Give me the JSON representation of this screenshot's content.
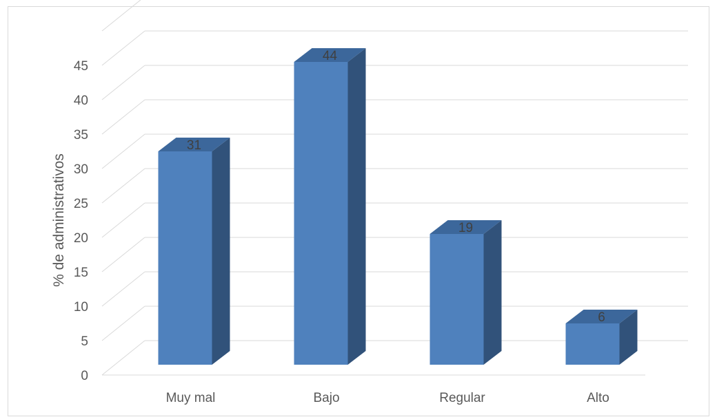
{
  "chart_data": {
    "type": "bar",
    "style": "3d-column",
    "title": "",
    "xlabel": "",
    "ylabel": "% de administrativos",
    "categories": [
      "Muy mal",
      "Bajo",
      "Regular",
      "Alto"
    ],
    "values": [
      31,
      44,
      19,
      6
    ],
    "ylim": [
      0,
      45
    ],
    "y_ticks": [
      0,
      5,
      10,
      15,
      20,
      25,
      30,
      35,
      40,
      45
    ],
    "grid": true,
    "legend": "none",
    "data_labels": true,
    "colors": {
      "bar_front": "#4f81bd",
      "bar_side": "#31527a",
      "bar_top": "#3c679b",
      "grid": "#d9d9d9",
      "text": "#595959"
    }
  }
}
